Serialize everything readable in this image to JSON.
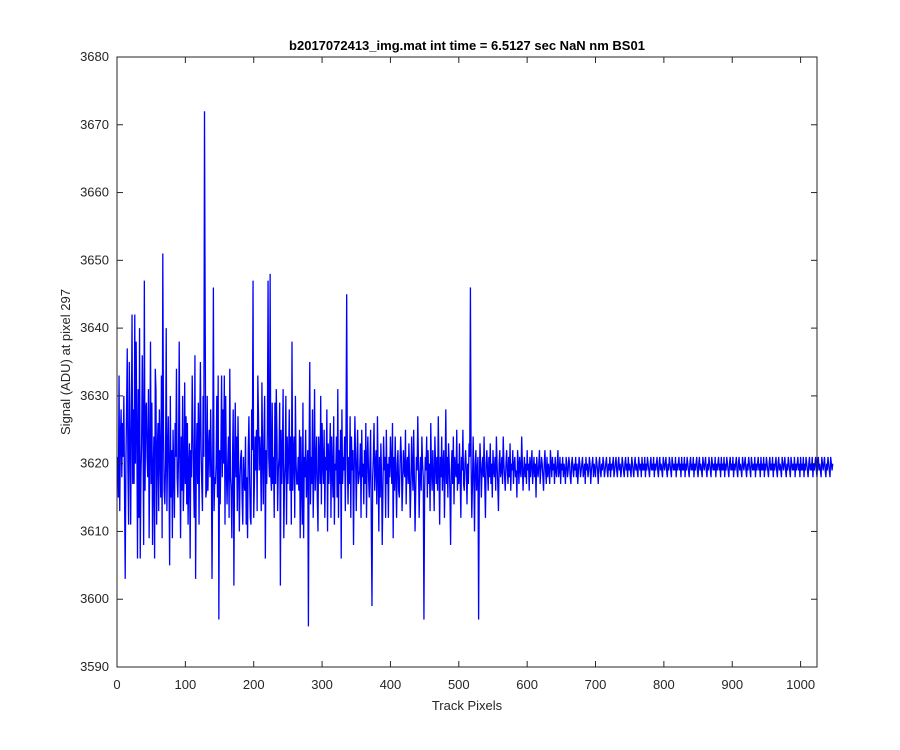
{
  "chart_data": {
    "type": "line",
    "title": "b2017072413_img.mat int time = 6.5127 sec  NaN nm BS01",
    "xlabel": "Track Pixels",
    "ylabel": "Signal (ADU) at pixel 297",
    "xlim": [
      0,
      1024
    ],
    "ylim": [
      3590,
      3680
    ],
    "xticks": [
      0,
      100,
      200,
      300,
      400,
      500,
      600,
      700,
      800,
      900,
      1000
    ],
    "yticks": [
      3590,
      3600,
      3610,
      3620,
      3630,
      3640,
      3650,
      3660,
      3670,
      3680
    ],
    "grid": false,
    "series": [
      {
        "color": "#0000ff",
        "x_start": 1,
        "x_step": 1,
        "values": [
          3621,
          3615,
          3633,
          3613,
          3624,
          3628,
          3618,
          3626,
          3621,
          3630,
          3616,
          3603,
          3620,
          3628,
          3637,
          3619,
          3611,
          3635,
          3625,
          3611,
          3626,
          3642,
          3617,
          3628,
          3617,
          3642,
          3620,
          3638,
          3625,
          3606,
          3631,
          3612,
          3640,
          3606,
          3618,
          3623,
          3636,
          3625,
          3608,
          3647,
          3616,
          3628,
          3629,
          3621,
          3618,
          3631,
          3609,
          3621,
          3638,
          3617,
          3629,
          3608,
          3619,
          3624,
          3606,
          3634,
          3631,
          3611,
          3622,
          3626,
          3613,
          3628,
          3621,
          3615,
          3633,
          3609,
          3651,
          3625,
          3616,
          3614,
          3620,
          3640,
          3613,
          3621,
          3627,
          3619,
          3605,
          3630,
          3615,
          3622,
          3609,
          3625,
          3619,
          3612,
          3626,
          3621,
          3634,
          3618,
          3615,
          3621,
          3638,
          3620,
          3609,
          3624,
          3616,
          3630,
          3613,
          3618,
          3632,
          3617,
          3627,
          3614,
          3626,
          3611,
          3620,
          3623,
          3606,
          3622,
          3618,
          3633,
          3625,
          3618,
          3612,
          3636,
          3603,
          3620,
          3626,
          3617,
          3629,
          3611,
          3625,
          3635,
          3622,
          3617,
          3613,
          3630,
          3621,
          3672,
          3642,
          3615,
          3616,
          3630,
          3616,
          3622,
          3625,
          3618,
          3628,
          3620,
          3603,
          3619,
          3646,
          3613,
          3618,
          3617,
          3620,
          3630,
          3615,
          3633,
          3597,
          3622,
          3614,
          3622,
          3633,
          3618,
          3628,
          3620,
          3633,
          3611,
          3630,
          3619,
          3614,
          3620,
          3624,
          3612,
          3634,
          3618,
          3616,
          3609,
          3621,
          3628,
          3602,
          3620,
          3629,
          3618,
          3624,
          3613,
          3627,
          3619,
          3610,
          3618,
          3621,
          3622,
          3615,
          3611,
          3621,
          3617,
          3616,
          3624,
          3611,
          3618,
          3609,
          3622,
          3627,
          3618,
          3612,
          3611,
          3628,
          3622,
          3647,
          3612,
          3617,
          3624,
          3619,
          3625,
          3613,
          3633,
          3627,
          3619,
          3624,
          3621,
          3613,
          3632,
          3621,
          3614,
          3624,
          3630,
          3606,
          3622,
          3617,
          3625,
          3647,
          3621,
          3618,
          3648,
          3618,
          3616,
          3629,
          3617,
          3621,
          3612,
          3629,
          3617,
          3631,
          3624,
          3613,
          3619,
          3621,
          3629,
          3602,
          3625,
          3617,
          3622,
          3631,
          3609,
          3617,
          3620,
          3630,
          3611,
          3624,
          3617,
          3621,
          3628,
          3616,
          3624,
          3611,
          3638,
          3616,
          3621,
          3624,
          3612,
          3630,
          3620,
          3617,
          3617,
          3621,
          3616,
          3625,
          3609,
          3624,
          3617,
          3611,
          3629,
          3609,
          3621,
          3618,
          3625,
          3615,
          3619,
          3622,
          3596,
          3622,
          3635,
          3614,
          3621,
          3617,
          3628,
          3612,
          3619,
          3631,
          3616,
          3620,
          3624,
          3615,
          3610,
          3624,
          3621,
          3617,
          3630,
          3614,
          3626,
          3620,
          3617,
          3625,
          3612,
          3621,
          3619,
          3628,
          3610,
          3623,
          3617,
          3621,
          3626,
          3612,
          3624,
          3619,
          3615,
          3627,
          3611,
          3620,
          3619,
          3624,
          3615,
          3631,
          3612,
          3622,
          3617,
          3625,
          3606,
          3628,
          3617,
          3621,
          3619,
          3624,
          3613,
          3625,
          3645,
          3620,
          3614,
          3621,
          3617,
          3627,
          3612,
          3624,
          3619,
          3622,
          3608,
          3619,
          3627,
          3621,
          3613,
          3620,
          3625,
          3617,
          3618,
          3619,
          3623,
          3612,
          3625,
          3618,
          3620,
          3614,
          3622,
          3617,
          3626,
          3612,
          3621,
          3624,
          3618,
          3615,
          3620,
          3625,
          3611,
          3599,
          3618,
          3621,
          3626,
          3616,
          3620,
          3622,
          3614,
          3627,
          3619,
          3610,
          3621,
          3615,
          3623,
          3618,
          3608,
          3616,
          3624,
          3619,
          3621,
          3612,
          3625,
          3617,
          3620,
          3612,
          3621,
          3618,
          3624,
          3620,
          3617,
          3626,
          3609,
          3621,
          3616,
          3624,
          3618,
          3612,
          3620,
          3622,
          3616,
          3615,
          3620,
          3624,
          3621,
          3613,
          3617,
          3622,
          3619,
          3618,
          3625,
          3614,
          3620,
          3621,
          3617,
          3623,
          3618,
          3612,
          3617,
          3624,
          3619,
          3616,
          3625,
          3618,
          3610,
          3616,
          3621,
          3619,
          3627,
          3620,
          3612,
          3618,
          3621,
          3616,
          3624,
          3620,
          3618,
          3597,
          3616,
          3621,
          3619,
          3624,
          3615,
          3622,
          3617,
          3620,
          3613,
          3626,
          3619,
          3616,
          3622,
          3618,
          3613,
          3624,
          3620,
          3617,
          3621,
          3616,
          3627,
          3619,
          3611,
          3621,
          3618,
          3624,
          3616,
          3620,
          3622,
          3612,
          3619,
          3628,
          3617,
          3621,
          3615,
          3623,
          3620,
          3616,
          3608,
          3619,
          3622,
          3617,
          3624,
          3614,
          3621,
          3619,
          3618,
          3625,
          3616,
          3620,
          3617,
          3623,
          3618,
          3612,
          3621,
          3619,
          3625,
          3617,
          3616,
          3620,
          3622,
          3619,
          3614,
          3620,
          3617,
          3623,
          3621,
          3646,
          3620,
          3612,
          3617,
          3624,
          3618,
          3610,
          3620,
          3622,
          3616,
          3619,
          3621,
          3597,
          3617,
          3623,
          3620,
          3615,
          3619,
          3621,
          3618,
          3624,
          3617,
          3612,
          3620,
          3622,
          3619,
          3616,
          3621,
          3618,
          3623,
          3617,
          3620,
          3615,
          3622,
          3619,
          3618,
          3621,
          3616,
          3624,
          3620,
          3617,
          3613,
          3620,
          3622,
          3618,
          3619,
          3621,
          3617,
          3624,
          3620,
          3618,
          3616,
          3620,
          3622,
          3619,
          3617,
          3621,
          3618,
          3623,
          3616,
          3620,
          3619,
          3622,
          3617,
          3620,
          3621,
          3618,
          3619,
          3615,
          3622,
          3620,
          3617,
          3621,
          3619,
          3618,
          3624,
          3620,
          3616,
          3619,
          3621,
          3618,
          3620,
          3617,
          3622,
          3619,
          3620,
          3616,
          3621,
          3618,
          3620,
          3622,
          3617,
          3619,
          3621,
          3618,
          3620,
          3615,
          3621,
          3619,
          3618,
          3620,
          3622,
          3617,
          3619,
          3621,
          3620,
          3618,
          3616,
          3620,
          3622,
          3619,
          3617,
          3621,
          3618,
          3620,
          3619,
          3617,
          3622,
          3620,
          3618,
          3621,
          3619,
          3620,
          3617,
          3621,
          3619,
          3618,
          3620,
          3622,
          3618,
          3619,
          3621,
          3617,
          3620,
          3619,
          3621,
          3618,
          3620,
          3619,
          3617,
          3621,
          3620,
          3618,
          3619,
          3621,
          3620,
          3618,
          3617,
          3620,
          3621,
          3619,
          3618,
          3620,
          3619,
          3621,
          3618,
          3620,
          3617,
          3619,
          3621,
          3620,
          3618,
          3619,
          3620,
          3621,
          3618,
          3619,
          3620,
          3617,
          3621,
          3619,
          3620,
          3618,
          3619,
          3621,
          3620,
          3617,
          3619,
          3620,
          3621,
          3618,
          3620,
          3619,
          3618,
          3621,
          3620,
          3619,
          3617,
          3620,
          3621,
          3619,
          3618,
          3620,
          3619,
          3621,
          3620,
          3618,
          3619,
          3620,
          3621,
          3619,
          3618,
          3620,
          3619,
          3621,
          3618,
          3620,
          3619,
          3620,
          3621,
          3618,
          3619,
          3620,
          3621,
          3619,
          3618,
          3620,
          3621,
          3619,
          3620,
          3618,
          3619,
          3621,
          3620,
          3619,
          3618,
          3620,
          3621,
          3619,
          3620,
          3618,
          3621,
          3619,
          3620,
          3619,
          3618,
          3621,
          3620,
          3619,
          3618,
          3620,
          3621,
          3619,
          3620,
          3619,
          3618,
          3621,
          3620,
          3619,
          3620,
          3618,
          3621,
          3619,
          3620,
          3619,
          3621,
          3618,
          3620,
          3619,
          3621,
          3620,
          3619,
          3618,
          3620,
          3621,
          3619,
          3620,
          3619,
          3621,
          3618,
          3620,
          3619,
          3620,
          3621,
          3619,
          3618,
          3620,
          3621,
          3619,
          3620,
          3619,
          3618,
          3621,
          3620,
          3619,
          3620,
          3621,
          3619,
          3618,
          3620,
          3619,
          3621,
          3620,
          3619,
          3618,
          3621,
          3620,
          3619,
          3620,
          3619,
          3621,
          3618,
          3620,
          3619,
          3620,
          3621,
          3619,
          3620,
          3618,
          3621,
          3619,
          3620,
          3619,
          3621,
          3618,
          3620,
          3619,
          3621,
          3620,
          3619,
          3618,
          3620,
          3621,
          3619,
          3620,
          3619,
          3621,
          3618,
          3620,
          3619,
          3620,
          3621,
          3619,
          3618,
          3620,
          3621,
          3619,
          3620,
          3619,
          3618,
          3621,
          3620,
          3619,
          3620,
          3621,
          3619,
          3618,
          3620,
          3619,
          3621,
          3620,
          3619,
          3618,
          3621,
          3620,
          3619,
          3620,
          3619,
          3621,
          3618,
          3620,
          3619,
          3620,
          3621,
          3619,
          3620,
          3618,
          3621,
          3619,
          3620,
          3619,
          3621,
          3618,
          3620,
          3619,
          3621,
          3620,
          3619,
          3618,
          3620,
          3621,
          3619,
          3620,
          3619,
          3621,
          3618,
          3620,
          3619,
          3620,
          3621,
          3619,
          3618,
          3620,
          3621,
          3619,
          3620,
          3619,
          3618,
          3621,
          3620,
          3619,
          3620,
          3621,
          3619,
          3618,
          3620,
          3619,
          3621,
          3620,
          3619,
          3618,
          3621,
          3620,
          3619,
          3620,
          3619,
          3621,
          3618,
          3620,
          3619,
          3620,
          3621,
          3619,
          3620,
          3618,
          3621,
          3619,
          3620,
          3619,
          3621,
          3618,
          3620,
          3619,
          3621,
          3620,
          3619,
          3618,
          3620,
          3621,
          3619,
          3620,
          3619,
          3621,
          3618,
          3620,
          3619,
          3620,
          3621,
          3619,
          3618,
          3620,
          3621,
          3619,
          3620,
          3619,
          3618,
          3621,
          3620,
          3619,
          3620,
          3621,
          3619,
          3618,
          3620,
          3619,
          3621,
          3620,
          3619,
          3618,
          3621,
          3620,
          3619,
          3620,
          3619,
          3621,
          3618,
          3620,
          3619,
          3620,
          3621,
          3619,
          3620,
          3618,
          3621,
          3619,
          3620,
          3619,
          3621,
          3618,
          3620,
          3619,
          3621,
          3620,
          3619,
          3618,
          3620,
          3621,
          3619,
          3620,
          3619,
          3621,
          3618,
          3620,
          3619,
          3620,
          3621,
          3619,
          3618,
          3620,
          3621,
          3619,
          3620,
          3619,
          3618,
          3621,
          3620,
          3619,
          3620,
          3621,
          3619,
          3618,
          3620,
          3619,
          3621,
          3620,
          3619,
          3618,
          3621,
          3620,
          3619,
          3620
        ]
      }
    ]
  }
}
